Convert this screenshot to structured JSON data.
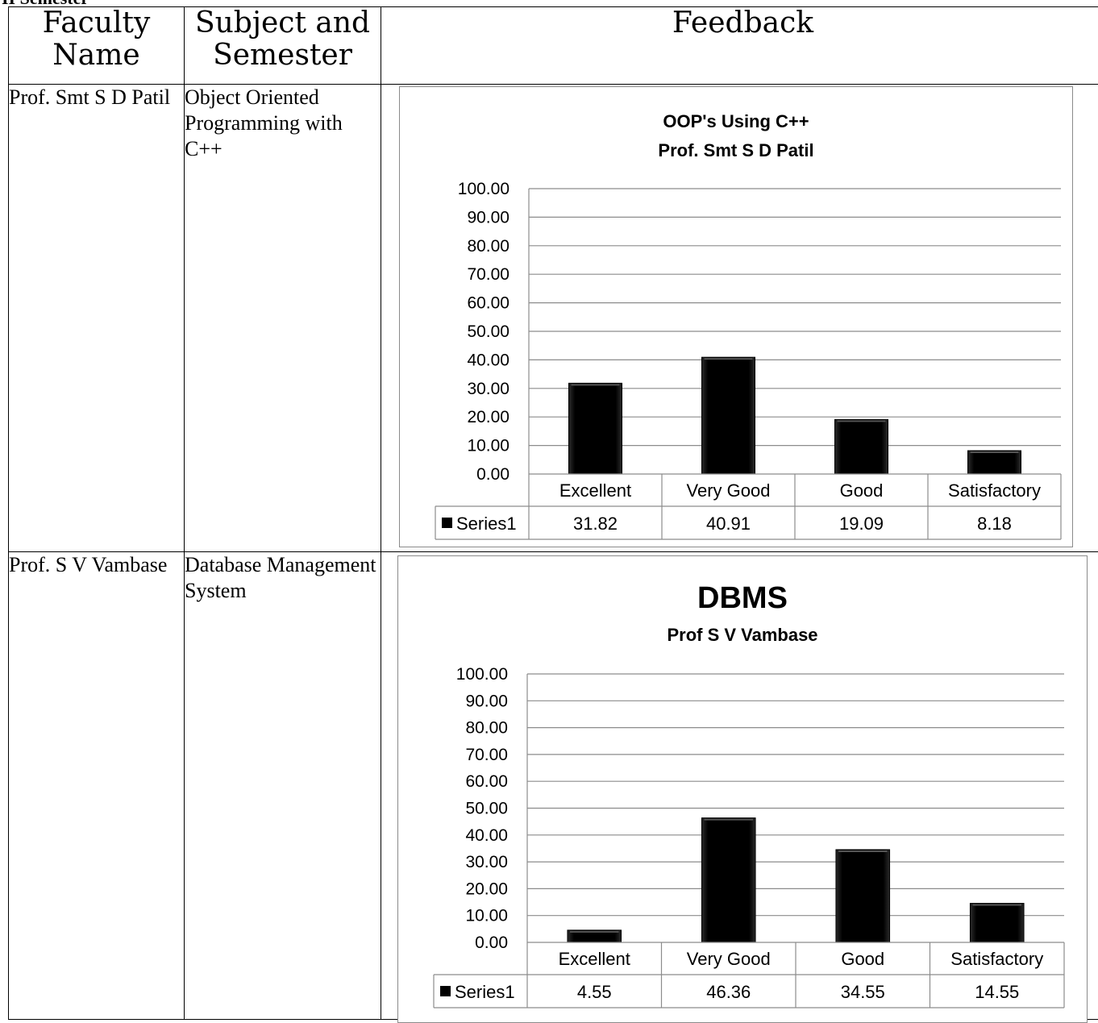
{
  "page": {
    "heading": "II Semester"
  },
  "table": {
    "headers": {
      "faculty": "Faculty Name",
      "subject": "Subject and Semester",
      "feedback": "Feedback"
    },
    "rows": [
      {
        "faculty": "Prof. Smt S D Patil",
        "subject": "Object Oriented Programming with C++"
      },
      {
        "faculty": "Prof. S V Vambase",
        "subject": "Database Management System"
      }
    ]
  },
  "chart_data": [
    {
      "type": "bar",
      "title": "OOP's Using C++",
      "subtitle": "Prof. Smt S D Patil",
      "categories": [
        "Excellent",
        "Very Good",
        "Good",
        "Satisfactory"
      ],
      "series": [
        {
          "name": "Series1",
          "values": [
            31.82,
            40.91,
            19.09,
            8.18
          ]
        }
      ],
      "value_labels": [
        "31.82",
        "40.91",
        "19.09",
        "8.18"
      ],
      "ylim": [
        0,
        100
      ],
      "yticks": [
        "0.00",
        "10.00",
        "20.00",
        "30.00",
        "40.00",
        "50.00",
        "60.00",
        "70.00",
        "80.00",
        "90.00",
        "100.00"
      ],
      "grid": true,
      "legend": "data table",
      "bar_color": "#000000"
    },
    {
      "type": "bar",
      "title": "DBMS",
      "subtitle": "Prof S V Vambase",
      "categories": [
        "Excellent",
        "Very Good",
        "Good",
        "Satisfactory"
      ],
      "series": [
        {
          "name": "Series1",
          "values": [
            4.55,
            46.36,
            34.55,
            14.55
          ]
        }
      ],
      "value_labels": [
        "4.55",
        "46.36",
        "34.55",
        "14.55"
      ],
      "ylim": [
        0,
        100
      ],
      "yticks": [
        "0.00",
        "10.00",
        "20.00",
        "30.00",
        "40.00",
        "50.00",
        "60.00",
        "70.00",
        "80.00",
        "90.00",
        "100.00"
      ],
      "grid": true,
      "legend": "data table",
      "bar_color": "#000000"
    }
  ]
}
